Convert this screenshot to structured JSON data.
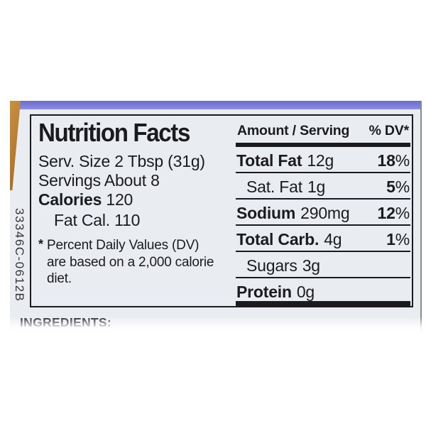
{
  "colors": {
    "accent_strip": "#7b7ed6",
    "jar_edge": "#b5792f",
    "label_bg": "#e9edf1",
    "ink": "#1b1b1d"
  },
  "nutrition": {
    "title": "Nutrition Facts",
    "left": {
      "serv_size": "Serv. Size 2 Tbsp (31g)",
      "servings": "Servings About 8",
      "calories_label": "Calories",
      "calories_value": "120",
      "fat_cal": "Fat Cal. 110",
      "footnote_marker": "*",
      "footnote": "Percent Daily Values (DV) are based on a 2,000 calorie diet."
    },
    "table": {
      "header_amount": "Amount / Serving",
      "header_dv": "% DV*",
      "rows": [
        {
          "label": "Total Fat",
          "value": "12g",
          "dv": "18",
          "pct": "%"
        },
        {
          "label": "Sat. Fat",
          "value": "1g",
          "dv": "5",
          "pct": "%"
        },
        {
          "label": "Sodium",
          "value": "290mg",
          "dv": "12",
          "pct": "%"
        },
        {
          "label": "Total Carb.",
          "value": "4g",
          "dv": "1",
          "pct": "%"
        },
        {
          "label": "Sugars",
          "value": "3g",
          "dv": "",
          "pct": ""
        },
        {
          "label": "Protein",
          "value": "0g",
          "dv": "",
          "pct": ""
        }
      ]
    }
  },
  "side_code": "33346C-0612B",
  "ingredients_text": "INGREDIENTS:"
}
